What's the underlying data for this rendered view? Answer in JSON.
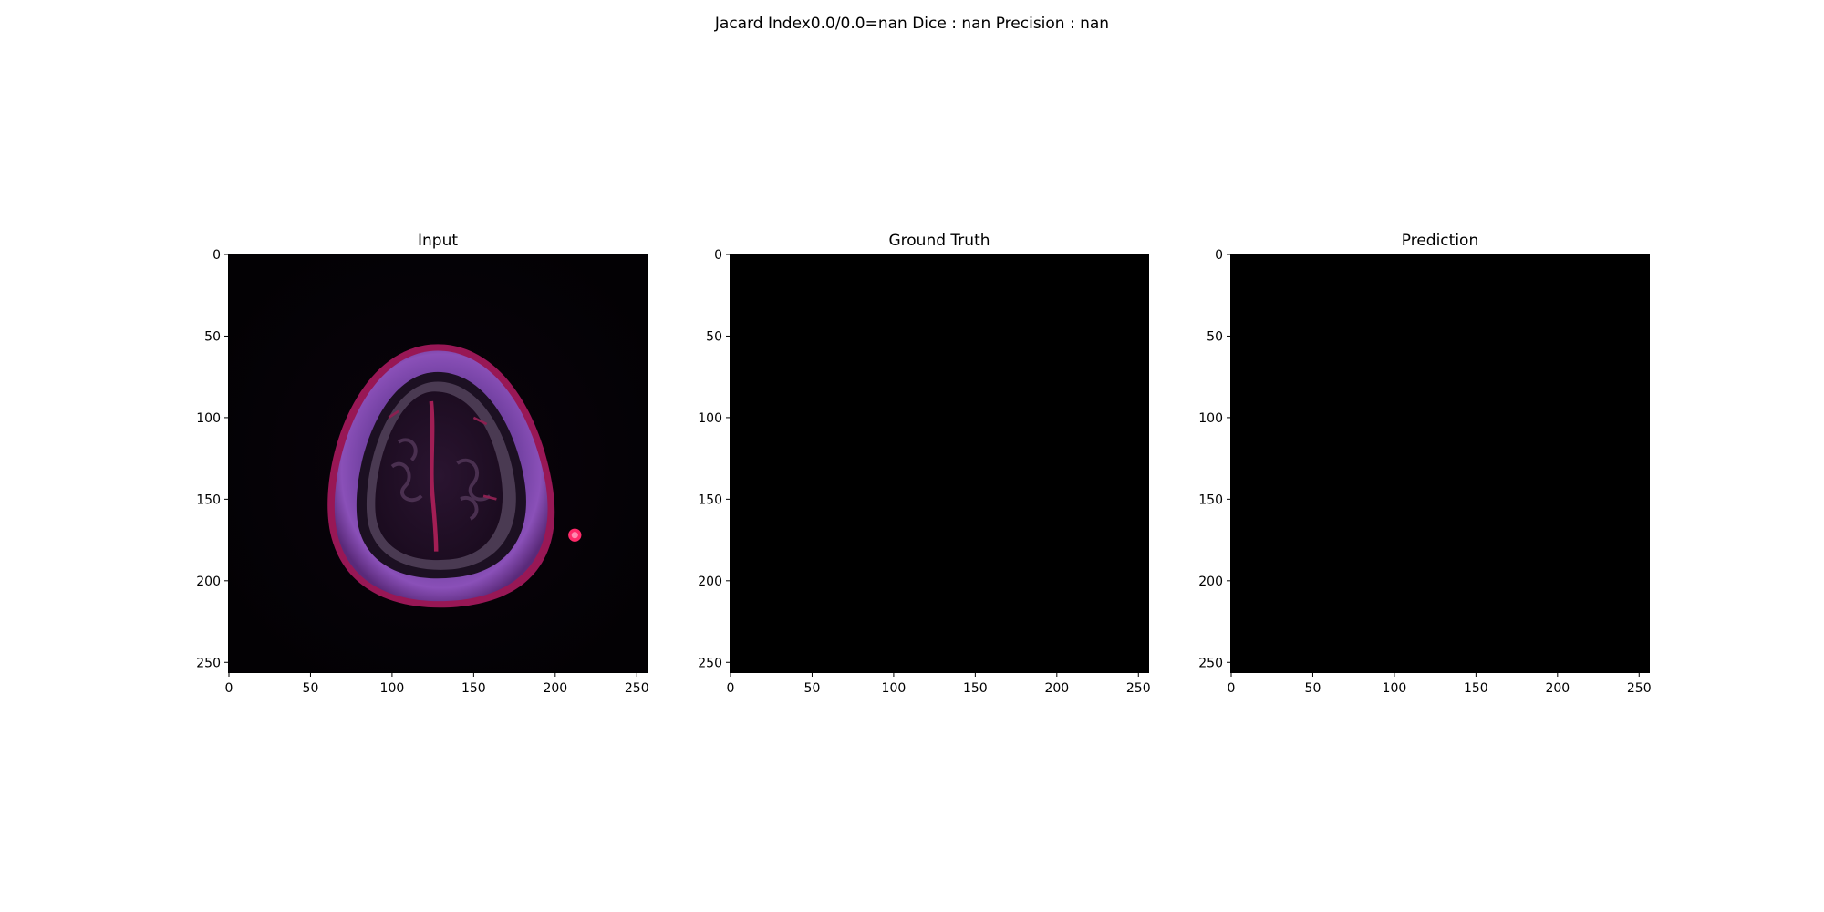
{
  "figure": {
    "suptitle": "Jacard Index0.0/0.0=nan Dice : nan Precision : nan"
  },
  "panels": [
    {
      "title": "Input",
      "image": "mri-brain-slice",
      "background": "#000000"
    },
    {
      "title": "Ground Truth",
      "image": "empty-mask",
      "background": "#000000"
    },
    {
      "title": "Prediction",
      "image": "empty-mask",
      "background": "#000000"
    }
  ],
  "axes": {
    "x_ticks": [
      0,
      50,
      100,
      150,
      200,
      250
    ],
    "y_ticks": [
      0,
      50,
      100,
      150,
      200,
      250
    ],
    "x_range": [
      0,
      256
    ],
    "y_range": [
      0,
      256
    ],
    "y_inverted": true
  },
  "colors": {
    "skull_ring": "#8a50b8",
    "scalp_edge": "#a0185a",
    "brain_tissue": "#2a1430",
    "midline": "#b0205a",
    "bright_spot": "#ff2a6a"
  }
}
